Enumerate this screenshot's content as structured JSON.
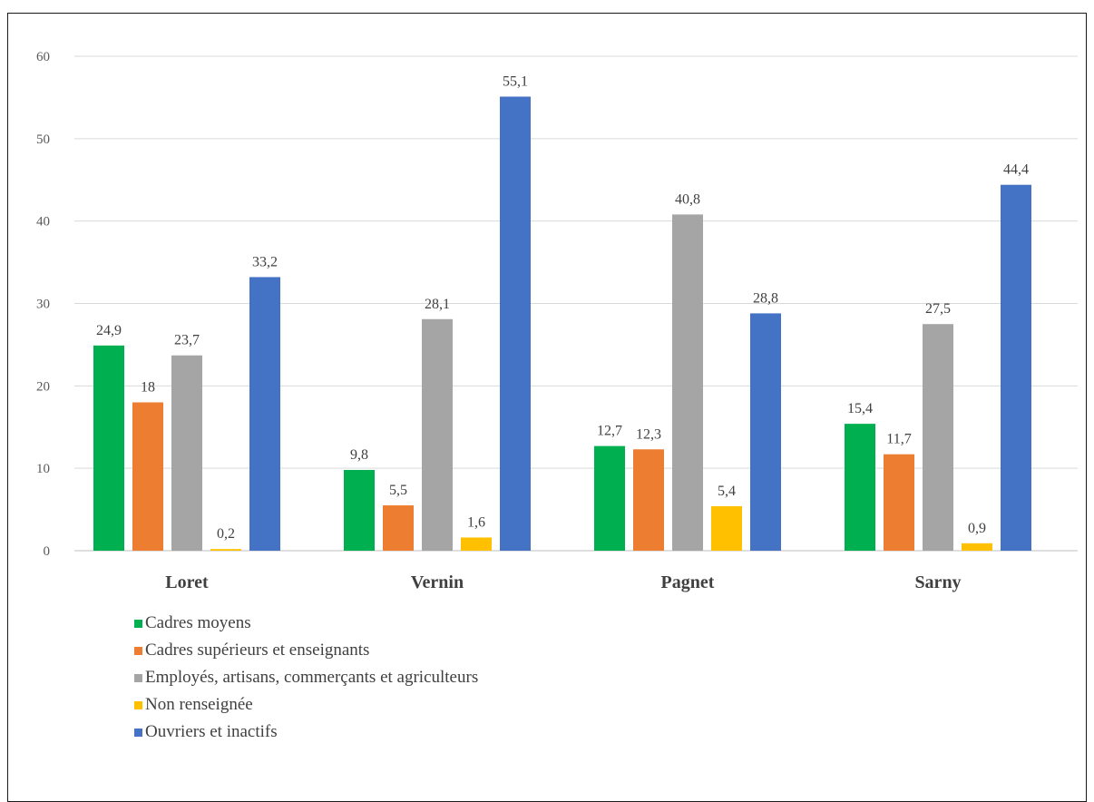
{
  "chart_data": {
    "type": "bar",
    "title": "",
    "xlabel": "",
    "ylabel": "",
    "categories": [
      "Loret",
      "Vernin",
      "Pagnet",
      "Sarny"
    ],
    "ylim": [
      0,
      60
    ],
    "yticks": [
      0,
      10,
      20,
      30,
      40,
      50,
      60
    ],
    "grid": true,
    "legend_position": "bottom-left",
    "series": [
      {
        "name": "Cadres moyens",
        "color": "#00B050",
        "values": [
          24.9,
          9.8,
          12.7,
          15.4
        ],
        "labels": [
          "24,9",
          "9,8",
          "12,7",
          "15,4"
        ]
      },
      {
        "name": "Cadres supérieurs et enseignants",
        "color": "#ED7D31",
        "values": [
          18,
          5.5,
          12.3,
          11.7
        ],
        "labels": [
          "18",
          "5,5",
          "12,3",
          "11,7"
        ]
      },
      {
        "name": "Employés, artisans, commerçants et agriculteurs",
        "color": "#A5A5A5",
        "values": [
          23.7,
          28.1,
          40.8,
          27.5
        ],
        "labels": [
          "23,7",
          "28,1",
          "40,8",
          "27,5"
        ]
      },
      {
        "name": "Non renseignée",
        "color": "#FFC000",
        "values": [
          0.2,
          1.6,
          5.4,
          0.9
        ],
        "labels": [
          "0,2",
          "1,6",
          "5,4",
          "0,9"
        ]
      },
      {
        "name": "Ouvriers et inactifs",
        "color": "#4472C4",
        "values": [
          33.2,
          55.1,
          28.8,
          44.4
        ],
        "labels": [
          "33,2",
          "55,1",
          "28,8",
          "44,4"
        ]
      }
    ]
  }
}
